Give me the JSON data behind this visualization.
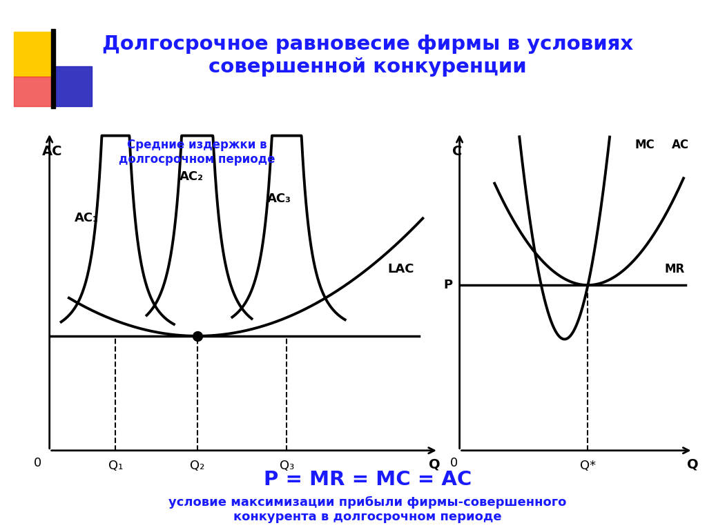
{
  "title": "Долгосрочное равновесие фирмы в условиях\nсовершенной конкуренции",
  "title_color": "#1a1aff",
  "subtitle_left": "Средние издержки в\nдолгосрочном периоде",
  "subtitle_color": "#1a1aff",
  "formula": "P = MR = MC = AC",
  "formula_sub": "условие максимизации прибыли фирмы-совершенного\nконкурента в долгосрочном периоде",
  "formula_color": "#1a1aff",
  "bg_color": "#ffffff",
  "curve_color": "#000000",
  "deco_yellow": "#ffcc00",
  "deco_red": "#ee3333",
  "deco_blue": "#2222bb"
}
